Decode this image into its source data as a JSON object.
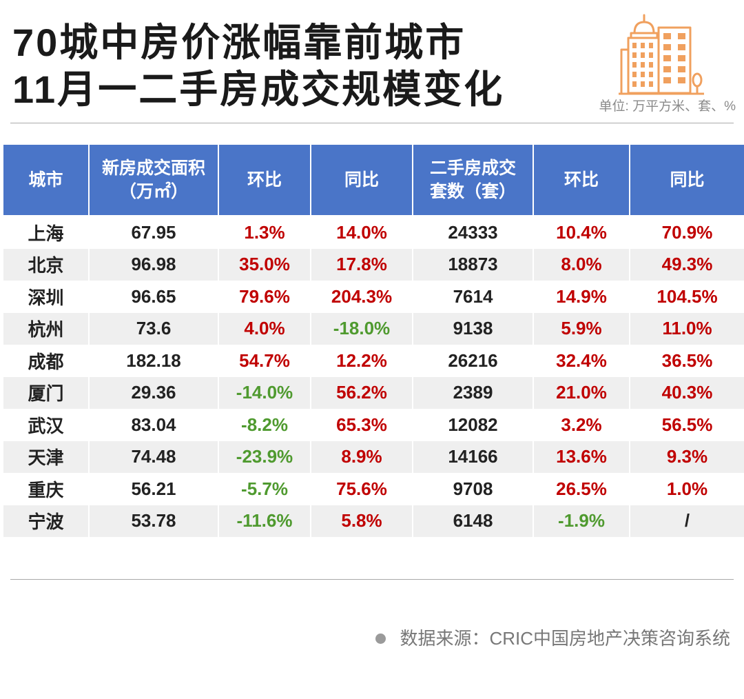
{
  "title": {
    "line1": "70城中房价涨幅靠前城市",
    "line2": "11月一二手房成交规模变化"
  },
  "header_icon": "city-buildings-icon",
  "unit_note": "单位: 万平方米、套、%",
  "colors": {
    "header_bg": "#4a75c8",
    "row_alt": "#efefef",
    "positive": "#c00000",
    "negative": "#4f9a2f",
    "icon": "#f0a05e"
  },
  "table": {
    "headers": {
      "city": "城市",
      "new_area_line1": "新房成交面积",
      "new_area_line2": "（万㎡）",
      "new_mom": "环比",
      "new_yoy": "同比",
      "second_units_line1": "二手房成交",
      "second_units_line2": "套数（套）",
      "second_mom": "环比",
      "second_yoy": "同比"
    },
    "rows": [
      {
        "city": "上海",
        "new_area": "67.95",
        "new_mom": "1.3%",
        "new_yoy": "14.0%",
        "second_units": "24333",
        "second_mom": "10.4%",
        "second_yoy": "70.9%"
      },
      {
        "city": "北京",
        "new_area": "96.98",
        "new_mom": "35.0%",
        "new_yoy": "17.8%",
        "second_units": "18873",
        "second_mom": "8.0%",
        "second_yoy": "49.3%"
      },
      {
        "city": "深圳",
        "new_area": "96.65",
        "new_mom": "79.6%",
        "new_yoy": "204.3%",
        "second_units": "7614",
        "second_mom": "14.9%",
        "second_yoy": "104.5%"
      },
      {
        "city": "杭州",
        "new_area": "73.6",
        "new_mom": "4.0%",
        "new_yoy": "-18.0%",
        "second_units": "9138",
        "second_mom": "5.9%",
        "second_yoy": "11.0%"
      },
      {
        "city": "成都",
        "new_area": "182.18",
        "new_mom": "54.7%",
        "new_yoy": "12.2%",
        "second_units": "26216",
        "second_mom": "32.4%",
        "second_yoy": "36.5%"
      },
      {
        "city": "厦门",
        "new_area": "29.36",
        "new_mom": "-14.0%",
        "new_yoy": "56.2%",
        "second_units": "2389",
        "second_mom": "21.0%",
        "second_yoy": "40.3%"
      },
      {
        "city": "武汉",
        "new_area": "83.04",
        "new_mom": "-8.2%",
        "new_yoy": "65.3%",
        "second_units": "12082",
        "second_mom": "3.2%",
        "second_yoy": "56.5%"
      },
      {
        "city": "天津",
        "new_area": "74.48",
        "new_mom": "-23.9%",
        "new_yoy": "8.9%",
        "second_units": "14166",
        "second_mom": "13.6%",
        "second_yoy": "9.3%"
      },
      {
        "city": "重庆",
        "new_area": "56.21",
        "new_mom": "-5.7%",
        "new_yoy": "75.6%",
        "second_units": "9708",
        "second_mom": "26.5%",
        "second_yoy": "1.0%"
      },
      {
        "city": "宁波",
        "new_area": "53.78",
        "new_mom": "-11.6%",
        "new_yoy": "5.8%",
        "second_units": "6148",
        "second_mom": "-1.9%",
        "second_yoy": "/"
      }
    ]
  },
  "source": {
    "bullet_icon": "dot-icon",
    "text": "数据来源：CRIC中国房地产决策咨询系统"
  }
}
